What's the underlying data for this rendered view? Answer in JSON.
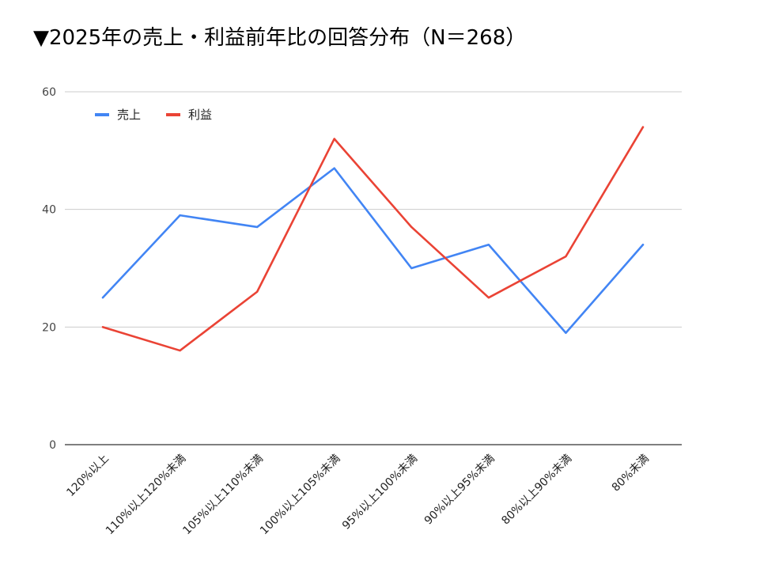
{
  "chart_data": {
    "type": "line",
    "title": "▼2025年の売上・利益前年比の回答分布（N＝268）",
    "categories": [
      "120%以上",
      "110%以上120%未満",
      "105%以上110%未満",
      "100%以上105%未満",
      "95%以上100%未満",
      "90%以上95%未満",
      "80%以上90%未満",
      "80%未満"
    ],
    "series": [
      {
        "name": "売上",
        "color": "#4285f4",
        "values": [
          25,
          39,
          37,
          47,
          30,
          34,
          19,
          34
        ]
      },
      {
        "name": "利益",
        "color": "#ea4335",
        "values": [
          20,
          16,
          26,
          52,
          37,
          25,
          32,
          54
        ]
      }
    ],
    "ylim": [
      0,
      60
    ],
    "yticks": [
      0,
      20,
      40,
      60
    ],
    "grid": true,
    "legend_position": "top-left",
    "xlabel": "",
    "ylabel": ""
  }
}
